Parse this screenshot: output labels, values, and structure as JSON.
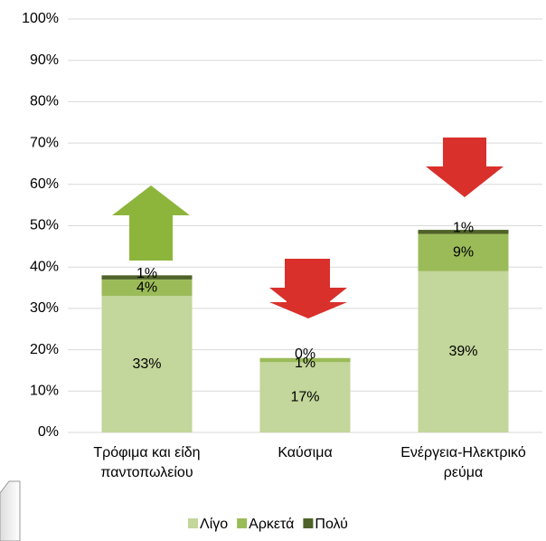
{
  "chart_data": {
    "type": "stacked_bar",
    "categories": [
      "Τρόφιμα και είδη παντοπωλείου",
      "Καύσιμα",
      "Ενέργεια-Ηλεκτρικό ρεύμα"
    ],
    "series": [
      {
        "name": "Λίγο",
        "color": "#c3d69b",
        "values": [
          33,
          17,
          39
        ],
        "value_labels": [
          "33%",
          "17%",
          "39%"
        ]
      },
      {
        "name": "Αρκετά",
        "color": "#9bbb59",
        "values": [
          4,
          1,
          9
        ],
        "value_labels": [
          "4%",
          "1%",
          "9%"
        ]
      },
      {
        "name": "Πολύ",
        "color": "#4f6228",
        "values": [
          1,
          0,
          1
        ],
        "value_labels": [
          "1%",
          "0%",
          "1%"
        ]
      }
    ],
    "ylim": [
      0,
      100
    ],
    "yticks": [
      {
        "value": 0,
        "label": "0%"
      },
      {
        "value": 10,
        "label": "10%"
      },
      {
        "value": 20,
        "label": "20%"
      },
      {
        "value": 30,
        "label": "30%"
      },
      {
        "value": 40,
        "label": "40%"
      },
      {
        "value": 50,
        "label": "50%"
      },
      {
        "value": 60,
        "label": "60%"
      },
      {
        "value": 70,
        "label": "70%"
      },
      {
        "value": 80,
        "label": "80%"
      },
      {
        "value": 90,
        "label": "90%"
      },
      {
        "value": 100,
        "label": "100%"
      }
    ],
    "grid": true
  }
}
